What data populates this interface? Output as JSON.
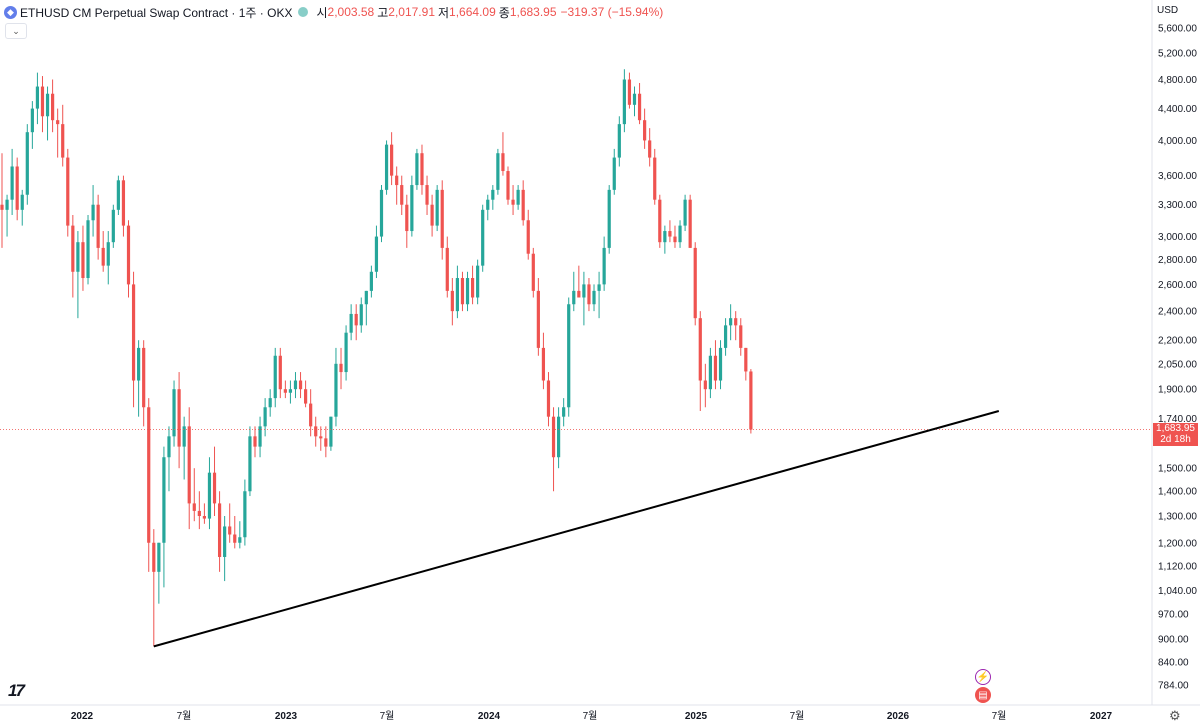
{
  "header": {
    "icon": "ethereum-icon",
    "title": "ETHUSD CM Perpetual Swap Contract · 1주 · OKX",
    "open_label": "시",
    "open": "2,003.58",
    "high_label": "고",
    "high": "2,017.91",
    "low_label": "저",
    "low": "1,664.09",
    "close_label": "종",
    "close": "1,683.95",
    "change": "−319.37 (−15.94%)"
  },
  "currency": "USD",
  "last_price": "1,683.95",
  "countdown": "2d 18h",
  "colors": {
    "up": "#26a69a",
    "down": "#ef5350",
    "trendline": "#000000"
  },
  "chart_data": {
    "type": "candlestick",
    "scale": "log",
    "interval": "1W",
    "ylim": [
      760,
      5900
    ],
    "y_ticks": [
      "5,600.00",
      "5,200.00",
      "4,800.00",
      "4,400.00",
      "4,000.00",
      "3,600.00",
      "3,300.00",
      "3,000.00",
      "2,800.00",
      "2,600.00",
      "2,400.00",
      "2,200.00",
      "2,050.00",
      "1,900.00",
      "1,740.00",
      "1,500.00",
      "1,400.00",
      "1,300.00",
      "1,200.00",
      "1,120.00",
      "1,040.00",
      "970.00",
      "900.00",
      "840.00",
      "784.00"
    ],
    "x_ticks": [
      "2022",
      "7월",
      "2023",
      "7월",
      "2024",
      "7월",
      "2025",
      "7월",
      "2026",
      "7월",
      "2027"
    ],
    "candles": [
      [
        3300,
        3850,
        2900,
        3250
      ],
      [
        3250,
        3400,
        3000,
        3350
      ],
      [
        3350,
        3900,
        3200,
        3700
      ],
      [
        3700,
        3800,
        3150,
        3250
      ],
      [
        3250,
        3450,
        3100,
        3400
      ],
      [
        3400,
        4200,
        3300,
        4100
      ],
      [
        4100,
        4500,
        3900,
        4400
      ],
      [
        4400,
        4900,
        4200,
        4700
      ],
      [
        4700,
        4850,
        4100,
        4300
      ],
      [
        4300,
        4700,
        4000,
        4600
      ],
      [
        4600,
        4800,
        4100,
        4250
      ],
      [
        4250,
        4400,
        3800,
        4200
      ],
      [
        4200,
        4450,
        3700,
        3800
      ],
      [
        3800,
        3900,
        3000,
        3100
      ],
      [
        3100,
        3200,
        2500,
        2700
      ],
      [
        2700,
        3050,
        2350,
        2950
      ],
      [
        2950,
        3100,
        2550,
        2650
      ],
      [
        2650,
        3200,
        2600,
        3150
      ],
      [
        3150,
        3500,
        3000,
        3300
      ],
      [
        3300,
        3400,
        2800,
        2900
      ],
      [
        2900,
        3050,
        2700,
        2750
      ],
      [
        2750,
        3050,
        2600,
        2950
      ],
      [
        2950,
        3300,
        2900,
        3250
      ],
      [
        3250,
        3600,
        3200,
        3550
      ],
      [
        3550,
        3600,
        3000,
        3100
      ],
      [
        3100,
        3150,
        2500,
        2600
      ],
      [
        2600,
        2700,
        1800,
        1950
      ],
      [
        1950,
        2200,
        1750,
        2150
      ],
      [
        2150,
        2200,
        1700,
        1800
      ],
      [
        1800,
        1850,
        1100,
        1200
      ],
      [
        1200,
        1250,
        880,
        1100
      ],
      [
        1100,
        1200,
        1000,
        1200
      ],
      [
        1200,
        1600,
        1050,
        1550
      ],
      [
        1550,
        1700,
        1400,
        1650
      ],
      [
        1650,
        1950,
        1600,
        1900
      ],
      [
        1900,
        2000,
        1500,
        1600
      ],
      [
        1600,
        1750,
        1450,
        1700
      ],
      [
        1700,
        1800,
        1250,
        1350
      ],
      [
        1350,
        1500,
        1280,
        1320
      ],
      [
        1320,
        1400,
        1250,
        1300
      ],
      [
        1300,
        1350,
        1270,
        1290
      ],
      [
        1290,
        1550,
        1250,
        1480
      ],
      [
        1480,
        1600,
        1300,
        1350
      ],
      [
        1350,
        1400,
        1100,
        1150
      ],
      [
        1150,
        1300,
        1070,
        1260
      ],
      [
        1260,
        1350,
        1200,
        1230
      ],
      [
        1230,
        1300,
        1180,
        1200
      ],
      [
        1200,
        1280,
        1180,
        1220
      ],
      [
        1220,
        1450,
        1190,
        1400
      ],
      [
        1400,
        1700,
        1380,
        1650
      ],
      [
        1650,
        1700,
        1550,
        1600
      ],
      [
        1600,
        1750,
        1550,
        1700
      ],
      [
        1700,
        1850,
        1650,
        1800
      ],
      [
        1800,
        1900,
        1750,
        1850
      ],
      [
        1850,
        2150,
        1800,
        2100
      ],
      [
        2100,
        2150,
        1850,
        1900
      ],
      [
        1900,
        1950,
        1850,
        1880
      ],
      [
        1880,
        1950,
        1820,
        1900
      ],
      [
        1900,
        2000,
        1850,
        1950
      ],
      [
        1950,
        2000,
        1850,
        1900
      ],
      [
        1900,
        1950,
        1800,
        1820
      ],
      [
        1820,
        1900,
        1650,
        1700
      ],
      [
        1700,
        1750,
        1600,
        1650
      ],
      [
        1650,
        1700,
        1580,
        1640
      ],
      [
        1640,
        1700,
        1550,
        1600
      ],
      [
        1600,
        1750,
        1580,
        1750
      ],
      [
        1750,
        2150,
        1700,
        2050
      ],
      [
        2050,
        2150,
        1900,
        2000
      ],
      [
        2000,
        2300,
        1950,
        2250
      ],
      [
        2250,
        2450,
        2200,
        2380
      ],
      [
        2380,
        2450,
        2200,
        2300
      ],
      [
        2300,
        2500,
        2250,
        2450
      ],
      [
        2450,
        2550,
        2300,
        2550
      ],
      [
        2550,
        2750,
        2500,
        2700
      ],
      [
        2700,
        3100,
        2650,
        3000
      ],
      [
        3000,
        3500,
        2950,
        3450
      ],
      [
        3450,
        4000,
        3400,
        3950
      ],
      [
        3950,
        4100,
        3500,
        3600
      ],
      [
        3600,
        3700,
        3300,
        3500
      ],
      [
        3500,
        3600,
        3200,
        3300
      ],
      [
        3300,
        3400,
        2900,
        3050
      ],
      [
        3050,
        3600,
        3000,
        3500
      ],
      [
        3500,
        3900,
        3450,
        3850
      ],
      [
        3850,
        3950,
        3400,
        3500
      ],
      [
        3500,
        3600,
        3200,
        3300
      ],
      [
        3300,
        3400,
        3000,
        3100
      ],
      [
        3100,
        3500,
        3050,
        3450
      ],
      [
        3450,
        3550,
        2800,
        2900
      ],
      [
        2900,
        3000,
        2500,
        2550
      ],
      [
        2550,
        2650,
        2300,
        2400
      ],
      [
        2400,
        2750,
        2350,
        2650
      ],
      [
        2650,
        2700,
        2400,
        2450
      ],
      [
        2450,
        2700,
        2400,
        2650
      ],
      [
        2650,
        2750,
        2450,
        2500
      ],
      [
        2500,
        2800,
        2450,
        2750
      ],
      [
        2750,
        3300,
        2700,
        3250
      ],
      [
        3250,
        3400,
        3150,
        3350
      ],
      [
        3350,
        3500,
        3250,
        3450
      ],
      [
        3450,
        3900,
        3400,
        3850
      ],
      [
        3850,
        4100,
        3600,
        3650
      ],
      [
        3650,
        3700,
        3300,
        3350
      ],
      [
        3350,
        3500,
        3200,
        3300
      ],
      [
        3300,
        3500,
        3250,
        3450
      ],
      [
        3450,
        3550,
        3100,
        3150
      ],
      [
        3150,
        3250,
        2800,
        2850
      ],
      [
        2850,
        2900,
        2500,
        2550
      ],
      [
        2550,
        2650,
        2100,
        2150
      ],
      [
        2150,
        2250,
        1900,
        1950
      ],
      [
        1950,
        2000,
        1700,
        1750
      ],
      [
        1750,
        1800,
        1400,
        1550
      ],
      [
        1550,
        1800,
        1500,
        1750
      ],
      [
        1750,
        1850,
        1700,
        1800
      ],
      [
        1800,
        2500,
        1750,
        2450
      ],
      [
        2450,
        2700,
        2400,
        2550
      ],
      [
        2550,
        2750,
        2500,
        2500
      ],
      [
        2500,
        2700,
        2300,
        2600
      ],
      [
        2600,
        2650,
        2400,
        2450
      ],
      [
        2450,
        2600,
        2400,
        2550
      ],
      [
        2550,
        2700,
        2350,
        2600
      ],
      [
        2600,
        3000,
        2550,
        2900
      ],
      [
        2900,
        3500,
        2850,
        3450
      ],
      [
        3450,
        3900,
        3400,
        3800
      ],
      [
        3800,
        4300,
        3700,
        4200
      ],
      [
        4200,
        4950,
        4100,
        4800
      ],
      [
        4800,
        4900,
        4400,
        4450
      ],
      [
        4450,
        4700,
        4300,
        4600
      ],
      [
        4600,
        4750,
        4200,
        4250
      ],
      [
        4250,
        4400,
        3900,
        4000
      ],
      [
        4000,
        4150,
        3700,
        3800
      ],
      [
        3800,
        3900,
        3300,
        3350
      ],
      [
        3350,
        3400,
        2900,
        2950
      ],
      [
        2950,
        3100,
        2850,
        3050
      ],
      [
        3050,
        3150,
        2950,
        3000
      ],
      [
        3000,
        3100,
        2900,
        2950
      ],
      [
        2950,
        3150,
        2900,
        3100
      ],
      [
        3100,
        3400,
        3050,
        3350
      ],
      [
        3350,
        3400,
        2900,
        2900
      ],
      [
        2900,
        2950,
        2300,
        2350
      ],
      [
        2350,
        2400,
        1780,
        1950
      ],
      [
        1950,
        2050,
        1800,
        1900
      ],
      [
        1900,
        2150,
        1850,
        2100
      ],
      [
        2100,
        2200,
        1900,
        1950
      ],
      [
        1950,
        2200,
        1900,
        2150
      ],
      [
        2150,
        2350,
        2100,
        2300
      ],
      [
        2300,
        2450,
        2200,
        2350
      ],
      [
        2350,
        2400,
        2200,
        2300
      ],
      [
        2300,
        2350,
        2100,
        2150
      ],
      [
        2150,
        2150,
        1950,
        2003.58
      ],
      [
        2003.58,
        2017.91,
        1664.09,
        1683.95
      ]
    ],
    "trendline": {
      "from": {
        "week": 30,
        "price": 880
      },
      "to": {
        "week": 197,
        "price": 1780
      }
    }
  }
}
